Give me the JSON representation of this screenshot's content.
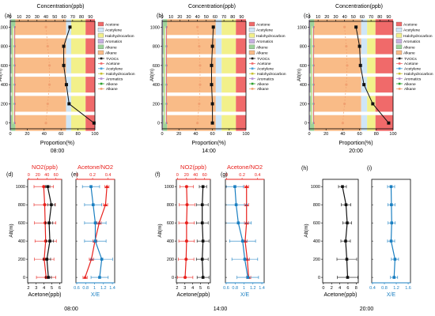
{
  "colors": {
    "acetone": "#f06a6a",
    "acetylene": "#cfe6f7",
    "halo": "#f2f08a",
    "aromatics": "#c7b0e0",
    "alkene": "#9dd39a",
    "alkane": "#f9bb87",
    "tvoc": "#111111",
    "no2": "#e8211d",
    "xe": "#1a7fc1"
  },
  "top_panels": [
    {
      "label": "(a)",
      "time": "08:00",
      "top_axis_title": "Concentration(ppb)",
      "bottom_axis_title": "Proportion(%)",
      "top_ticks": [
        "0",
        "10",
        "20",
        "30",
        "40",
        "50",
        "60",
        "70",
        "80",
        "90"
      ],
      "bottom_ticks": [
        "0",
        "20",
        "40",
        "60",
        "80",
        "100"
      ],
      "ylabel": "Alt(m)",
      "yticks": [
        "0",
        "200",
        "400",
        "600",
        "800",
        "1000"
      ],
      "legend_bars": [
        "Acetone",
        "Acetylene",
        "Halohydrocarbon",
        "Aromatics",
        "Alkene",
        "Alkane"
      ],
      "legend_lines": [
        "TVOCs",
        "Acetone",
        "Acetylene",
        "Halohydrocarbon",
        "Aromatics",
        "Alkene",
        "Alkane"
      ]
    },
    {
      "label": "(b)",
      "time": "14:00",
      "top_axis_title": "Concentration(ppb)",
      "bottom_axis_title": "Proportion(%)",
      "top_ticks": [
        "0",
        "10",
        "20",
        "30",
        "40",
        "50",
        "60",
        "70",
        "80",
        "90"
      ],
      "bottom_ticks": [
        "0",
        "20",
        "40",
        "60",
        "80",
        "100"
      ],
      "ylabel": "Alt(m)",
      "yticks": [
        "0",
        "200",
        "400",
        "600",
        "800",
        "1000"
      ],
      "legend_bars": [
        "Acetone",
        "Acetylene",
        "Halohydrocarbon",
        "Aromatics",
        "Alkene",
        "Alkane"
      ],
      "legend_lines": [
        "TVOCs",
        "Acetone",
        "Acetylene",
        "Halohydrocarbon",
        "Aromatics",
        "Alkene",
        "Alkane"
      ]
    },
    {
      "label": "(c)",
      "time": "20:00",
      "top_axis_title": "Concentration(ppb)",
      "bottom_axis_title": "Proportion(%)",
      "top_ticks": [
        "0",
        "10",
        "20",
        "30",
        "40",
        "50",
        "60",
        "70",
        "80",
        "90"
      ],
      "bottom_ticks": [
        "0",
        "20",
        "40",
        "60",
        "80",
        "100"
      ],
      "ylabel": "Alt(m)",
      "yticks": [
        "0",
        "200",
        "400",
        "600",
        "800",
        "1000"
      ],
      "legend_bars": [
        "Acetone",
        "Acetylene",
        "Halohydrocarbon",
        "Aromatics",
        "Alkene",
        "Alkane"
      ],
      "legend_lines": [
        "TVOCs",
        "Acetone",
        "Acetylene",
        "Halohydrocarbon",
        "Aromatics",
        "Alkene",
        "Alkane"
      ]
    }
  ],
  "bottom_groups": [
    {
      "time": "08:00",
      "left": {
        "label": "(d)",
        "top_title": "NO2(ppb)",
        "bottom_title": "Acetone(ppb)",
        "top_ticks": [
          "0",
          "20",
          "40",
          "60"
        ],
        "bottom_ticks": [
          "2",
          "3",
          "4",
          "5",
          "6"
        ],
        "ylabel": "Alt(m)",
        "yticks": [
          "0",
          "200",
          "400",
          "600",
          "800",
          "1000"
        ]
      },
      "right": {
        "label": "(e)",
        "top_title": "Acetone/NO2",
        "bottom_title": "X/E",
        "top_ticks": [
          "0",
          "0.2",
          "0.4"
        ],
        "bottom_ticks": [
          "0.6",
          "0.8",
          "1",
          "1.2",
          "1.4"
        ]
      }
    },
    {
      "time": "14:00",
      "left": {
        "label": "(f)",
        "top_title": "NO2(ppb)",
        "bottom_title": "Acetone(ppb)",
        "top_ticks": [
          "0",
          "20",
          "40",
          "60"
        ],
        "bottom_ticks": [
          "2",
          "3",
          "4",
          "5",
          "6"
        ],
        "ylabel": "Alt(m)",
        "yticks": [
          "0",
          "200",
          "400",
          "600",
          "800",
          "1000"
        ]
      },
      "right": {
        "label": "(g)",
        "top_title": "Acetone/NO2",
        "bottom_title": "X/E",
        "top_ticks": [
          "0",
          "0.2",
          "0.4"
        ],
        "bottom_ticks": [
          "0.6",
          "0.8",
          "1",
          "1.2",
          "1.4"
        ]
      }
    },
    {
      "time": "20:00",
      "left": {
        "label": "(h)",
        "top_title": "",
        "bottom_title": "Acetone(ppb)",
        "top_ticks": [],
        "bottom_ticks": [
          "0",
          "2",
          "4",
          "6",
          "8"
        ],
        "ylabel": "Alt(m)",
        "yticks": [
          "0",
          "200",
          "400",
          "600",
          "800",
          "1000"
        ]
      },
      "right": {
        "label": "(i)",
        "top_title": "",
        "bottom_title": "X/E",
        "top_ticks": [],
        "bottom_ticks": [
          "0.4",
          "0.8",
          "1.2",
          "1.6"
        ]
      }
    }
  ],
  "chart_data": [
    {
      "id": "a",
      "type": "bar",
      "orientation": "horizontal-stacked",
      "altitudes": [
        0,
        200,
        400,
        600,
        800,
        1000
      ],
      "bar_components": [
        "Aromatics",
        "Alkene",
        "Alkane",
        "Acetylene",
        "Halohydrocarbon",
        "Acetone"
      ],
      "proportions_pct": [
        {
          "Alkane": 60,
          "Alkene": 5,
          "Aromatics": 1,
          "Acetylene": 6,
          "Halohydrocarbon": 17,
          "Acetone": 11
        },
        {
          "Alkane": 60,
          "Alkene": 5,
          "Aromatics": 1,
          "Acetylene": 6,
          "Halohydrocarbon": 17,
          "Acetone": 11
        },
        {
          "Alkane": 60,
          "Alkene": 5,
          "Aromatics": 1,
          "Acetylene": 6,
          "Halohydrocarbon": 17,
          "Acetone": 11
        },
        {
          "Alkane": 60,
          "Alkene": 5,
          "Aromatics": 1,
          "Acetylene": 6,
          "Halohydrocarbon": 17,
          "Acetone": 11
        },
        {
          "Alkane": 60,
          "Alkene": 5,
          "Aromatics": 1,
          "Acetylene": 6,
          "Halohydrocarbon": 17,
          "Acetone": 11
        },
        {
          "Alkane": 60,
          "Alkene": 5,
          "Aromatics": 1,
          "Acetylene": 6,
          "Halohydrocarbon": 17,
          "Acetone": 11
        }
      ],
      "conc_ppb": {
        "TVOCs": [
          94,
          66,
          63,
          60,
          60,
          67
        ],
        "Alkane": [
          40,
          42,
          44,
          44,
          42,
          40
        ],
        "Acetone": [
          5,
          5,
          5,
          5,
          5,
          5
        ],
        "Acetylene": [
          4,
          4,
          4,
          4,
          4,
          4
        ],
        "Halohydrocarbon": [
          3,
          3,
          3,
          3,
          3,
          3
        ],
        "Aromatics": [
          1,
          1,
          1,
          1,
          1,
          1
        ],
        "Alkene": [
          2,
          2,
          2,
          2,
          2,
          2
        ]
      },
      "xlim_top": [
        0,
        95
      ],
      "xlim_bottom": [
        0,
        100
      ],
      "ylim": [
        -60,
        1060
      ]
    },
    {
      "id": "b",
      "type": "bar",
      "orientation": "horizontal-stacked",
      "altitudes": [
        0,
        200,
        400,
        600,
        800,
        1000
      ],
      "bar_components": [
        "Aromatics",
        "Alkene",
        "Alkane",
        "Acetylene",
        "Halohydrocarbon",
        "Acetone"
      ],
      "proportions_pct": [
        {
          "Alkane": 58,
          "Alkene": 5,
          "Aromatics": 1,
          "Acetylene": 7,
          "Halohydrocarbon": 17,
          "Acetone": 12
        },
        {
          "Alkane": 58,
          "Alkene": 5,
          "Aromatics": 1,
          "Acetylene": 7,
          "Halohydrocarbon": 17,
          "Acetone": 12
        },
        {
          "Alkane": 58,
          "Alkene": 5,
          "Aromatics": 1,
          "Acetylene": 7,
          "Halohydrocarbon": 17,
          "Acetone": 12
        },
        {
          "Alkane": 58,
          "Alkene": 5,
          "Aromatics": 1,
          "Acetylene": 7,
          "Halohydrocarbon": 17,
          "Acetone": 12
        },
        {
          "Alkane": 58,
          "Alkene": 5,
          "Aromatics": 1,
          "Acetylene": 7,
          "Halohydrocarbon": 17,
          "Acetone": 12
        },
        {
          "Alkane": 58,
          "Alkene": 5,
          "Aromatics": 1,
          "Acetylene": 7,
          "Halohydrocarbon": 17,
          "Acetone": 12
        }
      ],
      "conc_ppb": {
        "TVOCs": [
          57,
          57,
          56,
          56,
          57,
          58
        ],
        "Alkane": [
          40,
          42,
          43,
          43,
          42,
          40
        ],
        "Acetone": [
          5,
          5,
          5,
          5,
          5,
          5
        ],
        "Acetylene": [
          4,
          4,
          4,
          4,
          4,
          4
        ],
        "Halohydrocarbon": [
          3,
          3,
          3,
          3,
          3,
          3
        ],
        "Aromatics": [
          1,
          1,
          1,
          1,
          1,
          1
        ],
        "Alkene": [
          2,
          2,
          2,
          2,
          2,
          2
        ]
      },
      "xlim_top": [
        0,
        95
      ],
      "xlim_bottom": [
        0,
        100
      ],
      "ylim": [
        -60,
        1060
      ]
    },
    {
      "id": "c",
      "type": "bar",
      "orientation": "horizontal-stacked",
      "altitudes": [
        0,
        200,
        400,
        600,
        800,
        1000
      ],
      "bar_components": [
        "Aromatics",
        "Alkene",
        "Alkane",
        "Acetylene",
        "Halohydrocarbon",
        "Acetone"
      ],
      "proportions_pct": [
        {
          "Alkane": 56,
          "Alkene": 5,
          "Aromatics": 1,
          "Acetylene": 7,
          "Halohydrocarbon": 10,
          "Acetone": 21
        },
        {
          "Alkane": 56,
          "Alkene": 5,
          "Aromatics": 1,
          "Acetylene": 7,
          "Halohydrocarbon": 10,
          "Acetone": 21
        },
        {
          "Alkane": 56,
          "Alkene": 5,
          "Aromatics": 1,
          "Acetylene": 7,
          "Halohydrocarbon": 10,
          "Acetone": 21
        },
        {
          "Alkane": 56,
          "Alkene": 5,
          "Aromatics": 1,
          "Acetylene": 7,
          "Halohydrocarbon": 10,
          "Acetone": 21
        },
        {
          "Alkane": 56,
          "Alkene": 5,
          "Aromatics": 1,
          "Acetylene": 7,
          "Halohydrocarbon": 10,
          "Acetone": 21
        },
        {
          "Alkane": 56,
          "Alkene": 5,
          "Aromatics": 1,
          "Acetylene": 7,
          "Halohydrocarbon": 10,
          "Acetone": 21
        }
      ],
      "conc_ppb": {
        "TVOCs": [
          90,
          72,
          62,
          58,
          57,
          53
        ],
        "Alkane": [
          38,
          40,
          42,
          43,
          42,
          40
        ],
        "Acetone": [
          5,
          5,
          5,
          5,
          5,
          5
        ],
        "Acetylene": [
          4,
          4,
          4,
          4,
          4,
          4
        ],
        "Halohydrocarbon": [
          3,
          3,
          3,
          3,
          3,
          3
        ],
        "Aromatics": [
          1,
          1,
          1,
          1,
          1,
          1
        ],
        "Alkene": [
          2,
          2,
          2,
          2,
          2,
          2
        ]
      },
      "xlim_top": [
        0,
        95
      ],
      "xlim_bottom": [
        0,
        100
      ],
      "ylim": [
        -60,
        1060
      ]
    },
    {
      "id": "d",
      "type": "line",
      "altitudes": [
        0,
        200,
        400,
        600,
        800,
        1000
      ],
      "series": [
        {
          "axis": "top",
          "color": "no2",
          "x": [
            38,
            34,
            37,
            36,
            35,
            33
          ],
          "xerr": [
            20,
            20,
            22,
            22,
            22,
            20
          ]
        },
        {
          "axis": "bottom",
          "color": "tvoc",
          "x": [
            4.8,
            4.6,
            5.0,
            4.9,
            5.2,
            4.7
          ],
          "xerr": [
            0.4,
            0.5,
            0.5,
            0.5,
            0.5,
            0.3
          ]
        }
      ],
      "xlim_top": [
        0,
        70
      ],
      "xlim_bottom": [
        2,
        6.6
      ],
      "ylim": [
        -60,
        1080
      ]
    },
    {
      "id": "e",
      "type": "line",
      "altitudes": [
        0,
        200,
        400,
        600,
        800,
        1000
      ],
      "series": [
        {
          "axis": "top",
          "color": "no2",
          "x": [
            0.13,
            0.22,
            0.27,
            0.33,
            0.42,
            0.44
          ],
          "xerr": [
            0.03,
            0.03,
            0.03,
            0.03,
            0.03,
            0.03
          ]
        },
        {
          "axis": "bottom",
          "color": "xe",
          "x": [
            1.15,
            1.2,
            1.05,
            1.05,
            1.0,
            0.95
          ],
          "xerr": [
            0.2,
            0.25,
            0.25,
            0.25,
            0.2,
            0.2
          ]
        }
      ],
      "xlim_top": [
        0,
        0.55
      ],
      "xlim_bottom": [
        0.6,
        1.5
      ],
      "ylim": [
        -60,
        1080
      ]
    },
    {
      "id": "f",
      "type": "line",
      "altitudes": [
        0,
        200,
        400,
        600,
        800,
        1000
      ],
      "series": [
        {
          "axis": "top",
          "color": "no2",
          "x": [
            18,
            20,
            21,
            21,
            22,
            21
          ],
          "xerr": [
            16,
            16,
            16,
            16,
            16,
            14
          ]
        },
        {
          "axis": "bottom",
          "color": "tvoc",
          "x": [
            5.6,
            5.5,
            5.6,
            5.5,
            5.5,
            5.6
          ],
          "xerr": [
            0.8,
            0.8,
            0.8,
            0.8,
            0.8,
            0.5
          ]
        }
      ],
      "xlim_top": [
        0,
        70
      ],
      "xlim_bottom": [
        2,
        6.6
      ],
      "ylim": [
        -60,
        1080
      ]
    },
    {
      "id": "g",
      "type": "line",
      "altitudes": [
        0,
        200,
        400,
        600,
        800,
        1000
      ],
      "series": [
        {
          "axis": "top",
          "color": "no2",
          "x": [
            0.33,
            0.31,
            0.28,
            0.3,
            0.3,
            0.3
          ],
          "xerr": [
            0.03,
            0.03,
            0.03,
            0.03,
            0.03,
            0.03
          ]
        },
        {
          "axis": "bottom",
          "color": "xe",
          "x": [
            1.12,
            1.05,
            1.0,
            0.9,
            0.85,
            0.82
          ],
          "xerr": [
            0.25,
            0.3,
            0.3,
            0.3,
            0.25,
            0.2
          ]
        }
      ],
      "xlim_top": [
        0,
        0.55
      ],
      "xlim_bottom": [
        0.6,
        1.5
      ],
      "ylim": [
        -60,
        1080
      ]
    },
    {
      "id": "h",
      "type": "line",
      "altitudes": [
        0,
        200,
        400,
        600,
        800,
        1000
      ],
      "series": [
        {
          "axis": "bottom",
          "color": "tvoc",
          "x": [
            6.3,
            6.1,
            5.8,
            6.2,
            5.9,
            5.0
          ],
          "xerr": [
            2.6,
            2.5,
            1.2,
            1.1,
            1.2,
            1.0
          ]
        }
      ],
      "xlim_bottom": [
        0,
        9
      ],
      "ylim": [
        -60,
        1080
      ]
    },
    {
      "id": "i",
      "type": "line",
      "altitudes": [
        0,
        200,
        400,
        600,
        800,
        1000
      ],
      "series": [
        {
          "axis": "bottom",
          "color": "xe",
          "x": [
            1.15,
            1.18,
            1.05,
            1.07,
            1.06,
            1.05
          ],
          "xerr": [
            0.12,
            0.12,
            0.12,
            0.12,
            0.12,
            0.12
          ]
        }
      ],
      "xlim_bottom": [
        0.4,
        1.7
      ],
      "ylim": [
        -60,
        1080
      ]
    }
  ]
}
